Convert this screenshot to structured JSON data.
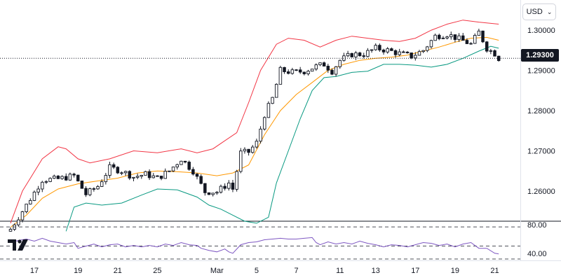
{
  "currency": {
    "label": "USD",
    "chevron": "chevron-down-icon"
  },
  "last_price": {
    "label": "1.29300",
    "value": 1.293
  },
  "logo": {
    "name": "tradingview-logo-icon"
  },
  "chart_data": [
    {
      "type": "candlestick",
      "title": "",
      "xlabel": "",
      "ylabel": "",
      "ylim": [
        1.2525,
        1.3075
      ],
      "price_ticks": [
        {
          "value": 1.3,
          "label": "1.30000"
        },
        {
          "value": 1.29,
          "label": "1.29000"
        },
        {
          "value": 1.28,
          "label": "1.28000"
        },
        {
          "value": 1.27,
          "label": "1.27000"
        },
        {
          "value": 1.26,
          "label": "1.26000"
        }
      ],
      "x_ticks": [
        {
          "index": 6,
          "label": "17"
        },
        {
          "index": 17,
          "label": "19"
        },
        {
          "index": 27,
          "label": "21"
        },
        {
          "index": 37,
          "label": "25"
        },
        {
          "index": 52,
          "label": "Mar"
        },
        {
          "index": 62,
          "label": "5"
        },
        {
          "index": 72,
          "label": "7"
        },
        {
          "index": 83,
          "label": "11"
        },
        {
          "index": 92,
          "label": "13"
        },
        {
          "index": 102,
          "label": "17"
        },
        {
          "index": 112,
          "label": "19"
        },
        {
          "index": 122,
          "label": "21"
        }
      ],
      "grid": false,
      "candle_count": 124,
      "close_path": [
        [
          0,
          1.2505
        ],
        [
          4,
          1.2565
        ],
        [
          8,
          1.2628
        ],
        [
          12,
          1.263
        ],
        [
          16,
          1.2638
        ],
        [
          19,
          1.2592
        ],
        [
          22,
          1.2612
        ],
        [
          25,
          1.2658
        ],
        [
          28,
          1.265
        ],
        [
          31,
          1.2635
        ],
        [
          34,
          1.2642
        ],
        [
          37,
          1.2632
        ],
        [
          40,
          1.265
        ],
        [
          43,
          1.268
        ],
        [
          46,
          1.265
        ],
        [
          49,
          1.2598
        ],
        [
          52,
          1.2598
        ],
        [
          55,
          1.262
        ],
        [
          56,
          1.2605
        ],
        [
          58,
          1.2695
        ],
        [
          60,
          1.2697
        ],
        [
          62,
          1.272
        ],
        [
          64,
          1.279
        ],
        [
          66,
          1.283
        ],
        [
          68,
          1.29
        ],
        [
          71,
          1.2895
        ],
        [
          74,
          1.2898
        ],
        [
          77,
          1.291
        ],
        [
          79,
          1.2915
        ],
        [
          81,
          1.2898
        ],
        [
          83,
          1.2925
        ],
        [
          86,
          1.294
        ],
        [
          89,
          1.294
        ],
        [
          92,
          1.2955
        ],
        [
          95,
          1.295
        ],
        [
          98,
          1.2942
        ],
        [
          101,
          1.2935
        ],
        [
          104,
          1.295
        ],
        [
          107,
          1.2985
        ],
        [
          110,
          1.299
        ],
        [
          113,
          1.2978
        ],
        [
          116,
          1.2965
        ],
        [
          118,
          1.2995
        ],
        [
          120,
          1.2955
        ],
        [
          122,
          1.2942
        ],
        [
          123,
          1.293
        ]
      ],
      "bollinger": {
        "upper": [
          [
            0,
            1.252
          ],
          [
            3,
            1.26
          ],
          [
            8,
            1.268
          ],
          [
            12,
            1.271
          ],
          [
            14,
            1.2705
          ],
          [
            17,
            1.268
          ],
          [
            20,
            1.267
          ],
          [
            25,
            1.268
          ],
          [
            31,
            1.27
          ],
          [
            37,
            1.2695
          ],
          [
            43,
            1.2705
          ],
          [
            47,
            1.2695
          ],
          [
            51,
            1.2705
          ],
          [
            54,
            1.2725
          ],
          [
            57,
            1.2745
          ],
          [
            60,
            1.282
          ],
          [
            63,
            1.29
          ],
          [
            67,
            1.2965
          ],
          [
            70,
            1.298
          ],
          [
            74,
            1.2975
          ],
          [
            78,
            1.2958
          ],
          [
            82,
            1.2975
          ],
          [
            86,
            1.2985
          ],
          [
            90,
            1.298
          ],
          [
            94,
            1.2975
          ],
          [
            98,
            1.2972
          ],
          [
            102,
            1.298
          ],
          [
            106,
            1.3
          ],
          [
            110,
            1.3015
          ],
          [
            114,
            1.3025
          ],
          [
            118,
            1.302
          ],
          [
            123,
            1.3015
          ]
        ],
        "middle": [
          [
            0,
            1.251
          ],
          [
            4,
            1.254
          ],
          [
            8,
            1.2582
          ],
          [
            12,
            1.2605
          ],
          [
            17,
            1.2618
          ],
          [
            22,
            1.2625
          ],
          [
            27,
            1.2632
          ],
          [
            32,
            1.2645
          ],
          [
            37,
            1.265
          ],
          [
            42,
            1.2648
          ],
          [
            47,
            1.2645
          ],
          [
            52,
            1.2638
          ],
          [
            56,
            1.2645
          ],
          [
            60,
            1.2665
          ],
          [
            64,
            1.274
          ],
          [
            68,
            1.28
          ],
          [
            72,
            1.284
          ],
          [
            76,
            1.287
          ],
          [
            80,
            1.29
          ],
          [
            84,
            1.2915
          ],
          [
            88,
            1.2925
          ],
          [
            92,
            1.293
          ],
          [
            96,
            1.2933
          ],
          [
            100,
            1.2938
          ],
          [
            104,
            1.2948
          ],
          [
            108,
            1.2958
          ],
          [
            112,
            1.297
          ],
          [
            116,
            1.298
          ],
          [
            120,
            1.2982
          ],
          [
            123,
            1.2975
          ]
        ],
        "lower": [
          [
            14,
            1.25
          ],
          [
            16,
            1.256
          ],
          [
            19,
            1.257
          ],
          [
            23,
            1.2565
          ],
          [
            28,
            1.257
          ],
          [
            33,
            1.259
          ],
          [
            37,
            1.2605
          ],
          [
            42,
            1.2603
          ],
          [
            47,
            1.2585
          ],
          [
            50,
            1.2565
          ],
          [
            53,
            1.2555
          ],
          [
            56,
            1.254
          ],
          [
            59,
            1.2525
          ],
          [
            62,
            1.252
          ],
          [
            65,
            1.2535
          ],
          [
            67,
            1.262
          ],
          [
            70,
            1.27
          ],
          [
            73,
            1.278
          ],
          [
            76,
            1.285
          ],
          [
            79,
            1.2882
          ],
          [
            82,
            1.2885
          ],
          [
            86,
            1.2895
          ],
          [
            90,
            1.2898
          ],
          [
            94,
            1.2915
          ],
          [
            98,
            1.2915
          ],
          [
            102,
            1.2913
          ],
          [
            106,
            1.2908
          ],
          [
            110,
            1.2915
          ],
          [
            114,
            1.293
          ],
          [
            118,
            1.2948
          ],
          [
            121,
            1.296
          ],
          [
            123,
            1.2955
          ]
        ],
        "colors": {
          "upper": "#f23645",
          "middle": "#ff9800",
          "lower": "#089981"
        }
      },
      "last_value": 1.293,
      "candle_colors": {
        "up": "#131722",
        "down": "#131722"
      }
    },
    {
      "type": "line",
      "title": "",
      "xlabel": "",
      "ylabel": "",
      "ylim": [
        30,
        85
      ],
      "ticks": [
        {
          "value": 80,
          "label": "80.00"
        },
        {
          "value": 40,
          "label": "40.00"
        }
      ],
      "bands": [
        77,
        50,
        32
      ],
      "series_color": "#7e57c2",
      "values": [
        [
          0,
          55
        ],
        [
          2,
          58
        ],
        [
          4,
          60
        ],
        [
          6,
          57
        ],
        [
          8,
          61
        ],
        [
          10,
          57
        ],
        [
          12,
          55
        ],
        [
          14,
          53
        ],
        [
          16,
          55
        ],
        [
          17,
          47
        ],
        [
          19,
          50
        ],
        [
          21,
          53
        ],
        [
          23,
          49
        ],
        [
          25,
          52
        ],
        [
          27,
          53
        ],
        [
          29,
          49
        ],
        [
          31,
          51
        ],
        [
          33,
          49
        ],
        [
          35,
          51
        ],
        [
          37,
          49
        ],
        [
          39,
          53
        ],
        [
          41,
          51
        ],
        [
          43,
          55
        ],
        [
          45,
          52
        ],
        [
          47,
          51
        ],
        [
          48,
          47
        ],
        [
          50,
          44
        ],
        [
          52,
          42
        ],
        [
          54,
          46
        ],
        [
          55,
          42
        ],
        [
          56,
          40
        ],
        [
          58,
          52
        ],
        [
          60,
          55
        ],
        [
          62,
          56
        ],
        [
          64,
          59
        ],
        [
          66,
          60
        ],
        [
          68,
          61
        ],
        [
          70,
          60
        ],
        [
          72,
          60
        ],
        [
          74,
          61
        ],
        [
          76,
          62
        ],
        [
          77,
          55
        ],
        [
          78,
          52
        ],
        [
          80,
          56
        ],
        [
          82,
          53
        ],
        [
          84,
          55
        ],
        [
          86,
          53
        ],
        [
          88,
          57
        ],
        [
          90,
          54
        ],
        [
          92,
          52
        ],
        [
          94,
          49
        ],
        [
          96,
          52
        ],
        [
          98,
          51
        ],
        [
          100,
          49
        ],
        [
          102,
          52
        ],
        [
          104,
          55
        ],
        [
          106,
          54
        ],
        [
          108,
          51
        ],
        [
          110,
          53
        ],
        [
          112,
          49
        ],
        [
          114,
          53
        ],
        [
          116,
          55
        ],
        [
          118,
          47
        ],
        [
          120,
          47
        ],
        [
          122,
          40
        ],
        [
          123,
          39
        ]
      ]
    }
  ]
}
